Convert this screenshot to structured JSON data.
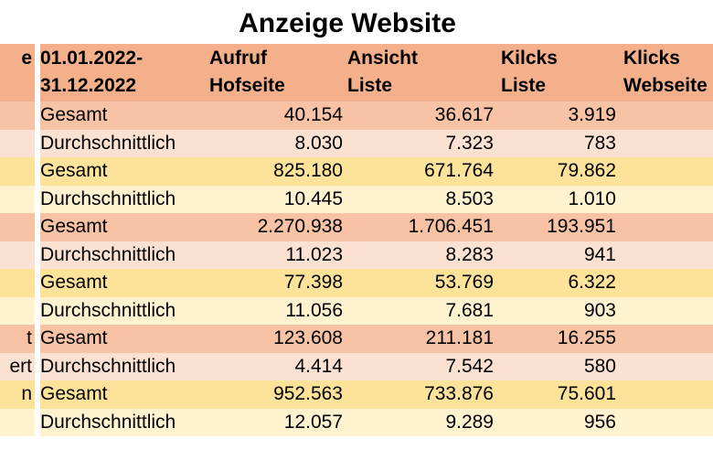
{
  "title": "Anzeige Website",
  "colors": {
    "header": "#f4b08a",
    "salmon_gesamt": "#f7c3a4",
    "salmon_avg": "#fbe1d2",
    "yellow_gesamt": "#fde39a",
    "yellow_avg": "#fff3cf"
  },
  "header": {
    "col0": "e",
    "period_line1": "01.01.2022-",
    "period_line2": "31.12.2022",
    "aufruf_line1": "Aufruf",
    "aufruf_line2": "Hofseite",
    "ansicht_line1": "Ansicht",
    "ansicht_line2": "Liste",
    "kilcks_line1": "Kilcks",
    "kilcks_line2": "Liste",
    "klicks_line1": "Klicks",
    "klicks_line2": "Webseite"
  },
  "rows": [
    {
      "c0": "",
      "label": "Gesamt",
      "aufruf": "40.154",
      "ansicht": "36.617",
      "kilcks": "3.919",
      "klicks": "",
      "bg": "#f7c3a4"
    },
    {
      "c0": "",
      "label": "Durchschnittlich",
      "aufruf": "8.030",
      "ansicht": "7.323",
      "kilcks": "783",
      "klicks": "",
      "bg": "#fbe1d2"
    },
    {
      "c0": "",
      "label": "Gesamt",
      "aufruf": "825.180",
      "ansicht": "671.764",
      "kilcks": "79.862",
      "klicks": "",
      "bg": "#fde39a"
    },
    {
      "c0": "",
      "label": "Durchschnittlich",
      "aufruf": "10.445",
      "ansicht": "8.503",
      "kilcks": "1.010",
      "klicks": "",
      "bg": "#fff3cf"
    },
    {
      "c0": "",
      "label": "Gesamt",
      "aufruf": "2.270.938",
      "ansicht": "1.706.451",
      "kilcks": "193.951",
      "klicks": "",
      "bg": "#f7c3a4"
    },
    {
      "c0": "",
      "label": "Durchschnittlich",
      "aufruf": "11.023",
      "ansicht": "8.283",
      "kilcks": "941",
      "klicks": "",
      "bg": "#fbe1d2"
    },
    {
      "c0": "",
      "label": "Gesamt",
      "aufruf": "77.398",
      "ansicht": "53.769",
      "kilcks": "6.322",
      "klicks": "",
      "bg": "#fde39a"
    },
    {
      "c0": "",
      "label": "Durchschnittlich",
      "aufruf": "11.056",
      "ansicht": "7.681",
      "kilcks": "903",
      "klicks": "",
      "bg": "#fff3cf"
    },
    {
      "c0": "t",
      "label": "Gesamt",
      "aufruf": "123.608",
      "ansicht": "211.181",
      "kilcks": "16.255",
      "klicks": "",
      "bg": "#f7c3a4"
    },
    {
      "c0": "ert",
      "label": "Durchschnittlich",
      "aufruf": "4.414",
      "ansicht": "7.542",
      "kilcks": "580",
      "klicks": "",
      "bg": "#fbe1d2"
    },
    {
      "c0": "n",
      "label": "Gesamt",
      "aufruf": "952.563",
      "ansicht": "733.876",
      "kilcks": "75.601",
      "klicks": "",
      "bg": "#fde39a"
    },
    {
      "c0": "",
      "label": "Durchschnittlich",
      "aufruf": "12.057",
      "ansicht": "9.289",
      "kilcks": "956",
      "klicks": "",
      "bg": "#fff3cf"
    }
  ]
}
